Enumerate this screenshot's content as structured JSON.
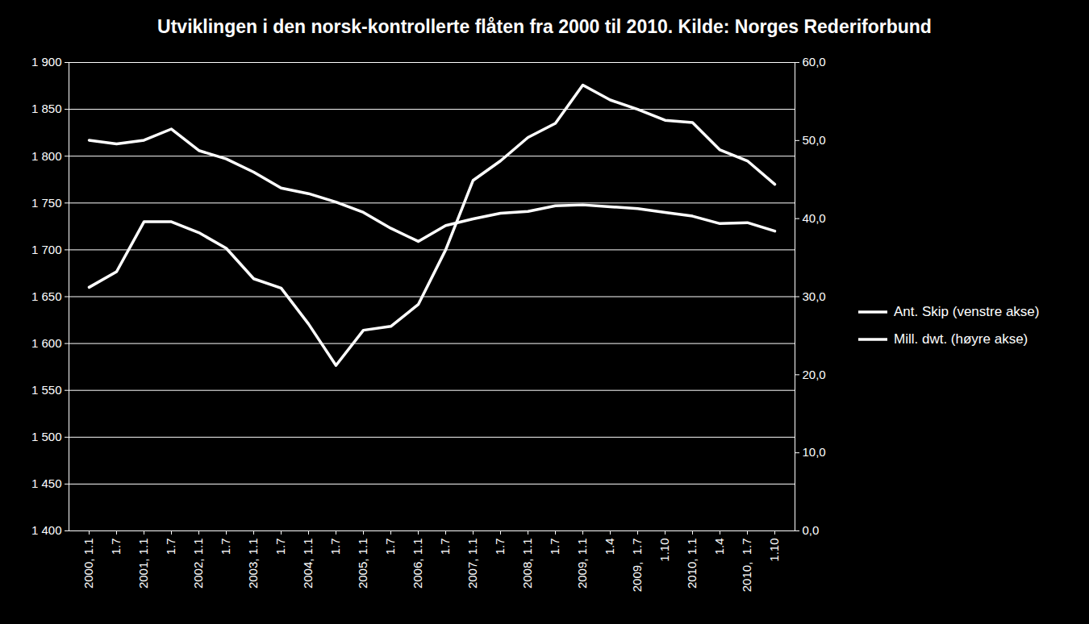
{
  "chart_data": {
    "type": "line",
    "title": "Utviklingen i den norsk-kontrollerte flåten fra 2000 til 2010. Kilde: Norges Rederiforbund",
    "categories": [
      "2000, 1.1",
      "1.7",
      "2001, 1.1",
      "1.7",
      "2002, 1.1",
      "1.7",
      "2003, 1.1",
      "1.7",
      "2004, 1.1",
      "1.7",
      "2005, 1.1",
      "1.7",
      "2006, 1.1",
      "1.7",
      "2007, 1.1",
      "1.7",
      "2008, 1.1",
      "1.7",
      "2009, 1.1",
      "1.4",
      "2009,  1.7",
      "1.10",
      "2010, 1.1",
      "1.4",
      "2010,  1.7",
      "1.10"
    ],
    "series": [
      {
        "name": "Ant. Skip (venstre akse)",
        "color": "#ffffff",
        "values": [
          1817,
          1813,
          1817,
          1829,
          1806,
          1797,
          1783,
          1766,
          1760,
          1751,
          1740,
          1723,
          1709,
          1726,
          1733,
          1739,
          1741,
          1747,
          1748,
          1746,
          1744,
          1740,
          1736,
          1728,
          1729,
          1720
        ]
      },
      {
        "name": "Mill. dwt. (høyre akse)",
        "color": "#ffffff",
        "axis": "y2",
        "values": [
          31.2,
          33.2,
          39.6,
          39.6,
          38.2,
          36.2,
          32.3,
          31.1,
          26.5,
          21.2,
          25.7,
          26.2,
          29.0,
          36.0,
          44.9,
          47.4,
          50.4,
          52.2,
          57.1,
          55.2,
          54.0,
          52.6,
          52.3,
          48.8,
          47.4,
          44.4
        ]
      }
    ],
    "ylim": [
      1400,
      1900
    ],
    "yticks": [
      {
        "value": 1400,
        "label": "1 400"
      },
      {
        "value": 1450,
        "label": "1 450"
      },
      {
        "value": 1500,
        "label": "1 500"
      },
      {
        "value": 1550,
        "label": "1 550"
      },
      {
        "value": 1600,
        "label": "1 600"
      },
      {
        "value": 1650,
        "label": "1 650"
      },
      {
        "value": 1700,
        "label": "1 700"
      },
      {
        "value": 1750,
        "label": "1 750"
      },
      {
        "value": 1800,
        "label": "1 800"
      },
      {
        "value": 1850,
        "label": "1 850"
      },
      {
        "value": 1900,
        "label": "1 900"
      }
    ],
    "y2lim": [
      0,
      60
    ],
    "y2ticks": [
      {
        "value": 0,
        "label": "0,0"
      },
      {
        "value": 10,
        "label": "10,0"
      },
      {
        "value": 20,
        "label": "20,0"
      },
      {
        "value": 30,
        "label": "30,0"
      },
      {
        "value": 40,
        "label": "40,0"
      },
      {
        "value": 50,
        "label": "50,0"
      },
      {
        "value": 60,
        "label": "60,0"
      }
    ],
    "grid": true,
    "legend": "right"
  }
}
